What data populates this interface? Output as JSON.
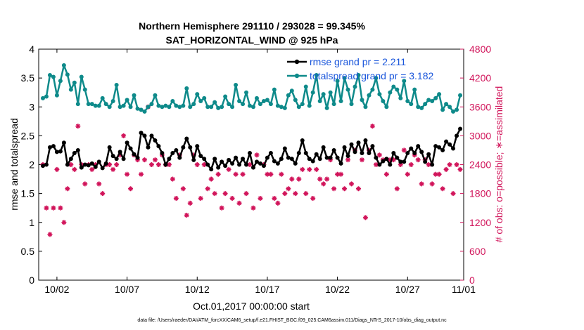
{
  "chart_data": {
    "type": "line",
    "title": "Northern Hemisphere 291110 / 293028 = 99.345%",
    "subtitle": "SAT_HORIZONTAL_WIND @ 925 hPa",
    "xlabel": "Oct.01,2017 00:00:00 start",
    "ylabel_left": "rmse and totalspread",
    "ylabel_right": "# of obs: o=possible; ∗=assimilated",
    "footnote": "data file: /Users/raeder/DAI/ATM_forcXX/CAM6_setup/f.e21.FHIST_BGC.f09_025.CAM6assim.011/Diags_NTrS_2017-10/obs_diag_output.nc",
    "xlim": [
      0.7,
      31.0
    ],
    "ylim_left": [
      0,
      4
    ],
    "ylim_right": [
      0,
      4800
    ],
    "x_ticks": [
      {
        "value": 2,
        "label": "10/02"
      },
      {
        "value": 7,
        "label": "10/07"
      },
      {
        "value": 12,
        "label": "10/12"
      },
      {
        "value": 17,
        "label": "10/17"
      },
      {
        "value": 22,
        "label": "10/22"
      },
      {
        "value": 27,
        "label": "10/27"
      },
      {
        "value": 31,
        "label": "11/01"
      }
    ],
    "y_ticks_left": [
      {
        "value": 0,
        "label": "0"
      },
      {
        "value": 0.5,
        "label": "0.5"
      },
      {
        "value": 1,
        "label": "1"
      },
      {
        "value": 1.5,
        "label": "1.5"
      },
      {
        "value": 2,
        "label": "2"
      },
      {
        "value": 2.5,
        "label": "2.5"
      },
      {
        "value": 3,
        "label": "3"
      },
      {
        "value": 3.5,
        "label": "3.5"
      },
      {
        "value": 4,
        "label": "4"
      }
    ],
    "y_ticks_right": [
      {
        "value": 0,
        "label": "0"
      },
      {
        "value": 600,
        "label": "600"
      },
      {
        "value": 1200,
        "label": "1200"
      },
      {
        "value": 1800,
        "label": "1800"
      },
      {
        "value": 2400,
        "label": "2400"
      },
      {
        "value": 3000,
        "label": "3000"
      },
      {
        "value": 3600,
        "label": "3600"
      },
      {
        "value": 4200,
        "label": "4200"
      },
      {
        "value": 4800,
        "label": "4800"
      }
    ],
    "legend_position": "top-right",
    "x": [
      1.0,
      1.25,
      1.5,
      1.75,
      2.0,
      2.25,
      2.5,
      2.75,
      3.0,
      3.25,
      3.5,
      3.75,
      4.0,
      4.25,
      4.5,
      4.75,
      5.0,
      5.25,
      5.5,
      5.75,
      6.0,
      6.25,
      6.5,
      6.75,
      7.0,
      7.25,
      7.5,
      7.75,
      8.0,
      8.25,
      8.5,
      8.75,
      9.0,
      9.25,
      9.5,
      9.75,
      10.0,
      10.25,
      10.5,
      10.75,
      11.0,
      11.25,
      11.5,
      11.75,
      12.0,
      12.25,
      12.5,
      12.75,
      13.0,
      13.25,
      13.5,
      13.75,
      14.0,
      14.25,
      14.5,
      14.75,
      15.0,
      15.25,
      15.5,
      15.75,
      16.0,
      16.25,
      16.5,
      16.75,
      17.0,
      17.25,
      17.5,
      17.75,
      18.0,
      18.25,
      18.5,
      18.75,
      19.0,
      19.25,
      19.5,
      19.75,
      20.0,
      20.25,
      20.5,
      20.75,
      21.0,
      21.25,
      21.5,
      21.75,
      22.0,
      22.25,
      22.5,
      22.75,
      23.0,
      23.25,
      23.5,
      23.75,
      24.0,
      24.25,
      24.5,
      24.75,
      25.0,
      25.25,
      25.5,
      25.75,
      26.0,
      26.25,
      26.5,
      26.75,
      27.0,
      27.25,
      27.5,
      27.75,
      28.0,
      28.25,
      28.5,
      28.75,
      29.0,
      29.25,
      29.5,
      29.75,
      30.0,
      30.25,
      30.5,
      30.75
    ],
    "series": [
      {
        "name": "rmse grand pr = 2.211",
        "axis": "left",
        "color": "#000000",
        "values": [
          1.98,
          2.0,
          2.3,
          2.32,
          2.22,
          2.23,
          2.38,
          2.0,
          2.1,
          2.2,
          2.25,
          1.95,
          2.0,
          1.99,
          2.02,
          1.96,
          2.05,
          1.94,
          2.02,
          2.3,
          2.15,
          2.1,
          2.22,
          2.1,
          2.38,
          2.28,
          2.18,
          2.12,
          2.55,
          2.5,
          2.3,
          2.5,
          2.42,
          2.32,
          2.2,
          2.0,
          2.1,
          2.2,
          2.25,
          2.12,
          2.3,
          2.45,
          2.3,
          2.08,
          2.32,
          2.15,
          2.1,
          2.0,
          1.92,
          2.1,
          1.95,
          2.05,
          1.98,
          2.08,
          2.02,
          2.12,
          2.0,
          2.1,
          2.0,
          2.2,
          1.95,
          2.05,
          2.02,
          1.98,
          2.12,
          2.2,
          2.06,
          2.02,
          2.1,
          2.28,
          2.12,
          2.1,
          2.02,
          2.2,
          2.42,
          2.2,
          2.1,
          2.06,
          2.18,
          2.1,
          2.3,
          2.12,
          2.12,
          2.25,
          2.12,
          2.02,
          2.3,
          2.15,
          2.35,
          2.22,
          2.38,
          2.2,
          2.42,
          2.2,
          2.32,
          2.12,
          2.0,
          2.06,
          2.1,
          2.0,
          2.2,
          2.12,
          2.05,
          2.05,
          2.2,
          2.28,
          2.2,
          2.32,
          2.22,
          2.05,
          2.18,
          2.0,
          2.32,
          2.3,
          2.25,
          2.4,
          2.35,
          2.28,
          2.5,
          2.62
        ]
      },
      {
        "name": "totalspread grand pr = 3.182",
        "axis": "left",
        "color": "#0e8a8a",
        "values": [
          3.15,
          3.18,
          3.55,
          3.52,
          3.2,
          3.45,
          3.72,
          3.56,
          3.3,
          3.42,
          3.05,
          3.52,
          3.3,
          3.05,
          3.05,
          3.02,
          3.02,
          3.15,
          3.05,
          3.0,
          3.1,
          3.38,
          3.0,
          3.02,
          3.12,
          3.0,
          3.2,
          2.97,
          2.95,
          2.92,
          3.0,
          3.05,
          3.2,
          3.02,
          3.0,
          3.02,
          3.0,
          3.1,
          3.02,
          3.0,
          3.02,
          3.32,
          3.0,
          3.05,
          3.22,
          3.1,
          3.15,
          3.0,
          3.0,
          3.08,
          2.98,
          3.0,
          3.18,
          3.05,
          3.0,
          3.38,
          3.1,
          3.05,
          3.25,
          3.02,
          3.0,
          3.15,
          3.05,
          3.1,
          3.12,
          3.05,
          3.3,
          3.02,
          3.0,
          2.98,
          3.2,
          3.28,
          3.12,
          3.0,
          3.05,
          3.35,
          3.02,
          3.25,
          3.55,
          3.1,
          3.22,
          2.98,
          3.25,
          3.05,
          3.45,
          3.1,
          3.5,
          3.3,
          3.05,
          3.35,
          3.55,
          3.12,
          3.0,
          3.2,
          3.3,
          3.5,
          3.22,
          3.1,
          3.0,
          3.25,
          3.35,
          3.3,
          3.15,
          3.45,
          3.1,
          3.05,
          3.3,
          3.0,
          2.98,
          3.05,
          3.12,
          3.1,
          3.15,
          3.22,
          2.95,
          3.05,
          3.0,
          2.92,
          2.95,
          3.2
        ]
      },
      {
        "name": "# of obs assimilated",
        "axis": "right",
        "color": "#d1145a",
        "values": [
          2400,
          1500,
          950,
          1500,
          2300,
          1500,
          1200,
          1900,
          2400,
          2300,
          3200,
          2400,
          2000,
          2400,
          2300,
          2400,
          2000,
          1800,
          2400,
          2400,
          2300,
          2400,
          2600,
          3000,
          2200,
          1900,
          2600,
          2500,
          2200,
          2500,
          3600,
          2400,
          2500,
          2400,
          2600,
          2400,
          2400,
          2100,
          1700,
          2600,
          1900,
          1350,
          1600,
          2600,
          2400,
          1700,
          2400,
          1900,
          2100,
          1800,
          2200,
          1500,
          1800,
          2300,
          1700,
          2200,
          1600,
          2200,
          1800,
          2400,
          1500,
          2600,
          1700,
          2400,
          2200,
          2200,
          1700,
          1600,
          2200,
          1800,
          1900,
          2100,
          1800,
          2100,
          2300,
          1800,
          2300,
          1700,
          2300,
          2100,
          2000,
          2100,
          2500,
          1900,
          2200,
          2200,
          1900,
          2500,
          2000,
          2700,
          1900,
          2500,
          1300,
          2700,
          3200,
          2400,
          2600,
          2500,
          2200,
          2500,
          2500,
          1900,
          2400,
          2700,
          2200,
          2400,
          2600,
          2500,
          2000,
          2500,
          2400,
          2000,
          2200,
          2200,
          1900,
          2300,
          2400,
          1800,
          2400,
          2300
        ]
      }
    ],
    "legend": [
      {
        "label": "rmse grand pr = 2.211",
        "color": "#000000"
      },
      {
        "label": "totalspread grand pr = 3.182",
        "color": "#0e8a8a"
      }
    ]
  }
}
